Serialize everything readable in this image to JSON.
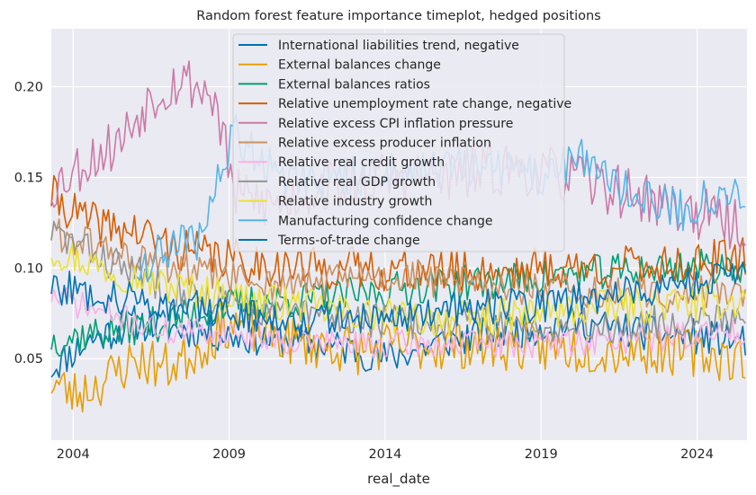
{
  "chart_data": {
    "type": "line",
    "title": "Random forest feature importance timeplot, hedged positions",
    "xlabel": "real_date",
    "ylabel": "",
    "xlim": [
      2003.3,
      2025.6
    ],
    "ylim": [
      0.005,
      0.232
    ],
    "x_ticks": [
      2004,
      2009,
      2014,
      2019,
      2024
    ],
    "x_tick_labels": [
      "2004",
      "2009",
      "2014",
      "2019",
      "2024"
    ],
    "y_ticks": [
      0.05,
      0.1,
      0.15,
      0.2
    ],
    "y_tick_labels": [
      "0.05",
      "0.10",
      "0.15",
      "0.20"
    ],
    "grid": true,
    "legend_position": "top-center",
    "x_start": 2003.3,
    "x_step": 0.08333,
    "points": 268,
    "series": [
      {
        "name": "International liabilities trend, negative",
        "color": "#0072b2",
        "start_x": 2003.3,
        "keyframes": [
          [
            2003.3,
            0.045
          ],
          [
            2004.5,
            0.06
          ],
          [
            2006.0,
            0.07
          ],
          [
            2008.0,
            0.065
          ],
          [
            2009.5,
            0.062
          ],
          [
            2011.0,
            0.06
          ],
          [
            2013.0,
            0.055
          ],
          [
            2014.0,
            0.05
          ],
          [
            2016.0,
            0.06
          ],
          [
            2018.0,
            0.065
          ],
          [
            2020.0,
            0.07
          ],
          [
            2022.0,
            0.065
          ],
          [
            2024.0,
            0.062
          ],
          [
            2025.6,
            0.06
          ]
        ],
        "noise": 0.01,
        "seed": 11
      },
      {
        "name": "External balances change",
        "color": "#e69f00",
        "start_x": 2003.3,
        "keyframes": [
          [
            2003.3,
            0.038
          ],
          [
            2004.0,
            0.03
          ],
          [
            2005.0,
            0.038
          ],
          [
            2006.0,
            0.05
          ],
          [
            2007.0,
            0.045
          ],
          [
            2008.0,
            0.055
          ],
          [
            2009.0,
            0.07
          ],
          [
            2011.0,
            0.06
          ],
          [
            2013.0,
            0.055
          ],
          [
            2015.0,
            0.057
          ],
          [
            2017.0,
            0.058
          ],
          [
            2019.0,
            0.056
          ],
          [
            2021.0,
            0.055
          ],
          [
            2023.0,
            0.055
          ],
          [
            2025.6,
            0.05
          ]
        ],
        "noise": 0.014,
        "seed": 23
      },
      {
        "name": "External balances ratios",
        "color": "#009e73",
        "start_x": 2003.3,
        "keyframes": [
          [
            2003.3,
            0.06
          ],
          [
            2005.0,
            0.065
          ],
          [
            2007.0,
            0.07
          ],
          [
            2009.0,
            0.08
          ],
          [
            2011.0,
            0.082
          ],
          [
            2013.0,
            0.085
          ],
          [
            2015.0,
            0.09
          ],
          [
            2017.0,
            0.092
          ],
          [
            2019.0,
            0.095
          ],
          [
            2021.0,
            0.098
          ],
          [
            2023.0,
            0.1
          ],
          [
            2025.6,
            0.102
          ]
        ],
        "noise": 0.01,
        "seed": 37
      },
      {
        "name": "Relative unemployment rate change, negative",
        "color": "#d55e00",
        "start_x": 2003.3,
        "keyframes": [
          [
            2003.3,
            0.14
          ],
          [
            2004.5,
            0.125
          ],
          [
            2006.0,
            0.12
          ],
          [
            2007.5,
            0.11
          ],
          [
            2009.0,
            0.105
          ],
          [
            2011.0,
            0.1
          ],
          [
            2013.0,
            0.1
          ],
          [
            2015.0,
            0.098
          ],
          [
            2017.0,
            0.098
          ],
          [
            2019.0,
            0.1
          ],
          [
            2021.0,
            0.1
          ],
          [
            2023.0,
            0.102
          ],
          [
            2025.6,
            0.105
          ]
        ],
        "noise": 0.012,
        "seed": 41
      },
      {
        "name": "Relative excess CPI inflation pressure",
        "color": "#cc79a7",
        "start_x": 2003.3,
        "keyframes": [
          [
            2003.3,
            0.145
          ],
          [
            2004.5,
            0.16
          ],
          [
            2005.5,
            0.17
          ],
          [
            2006.5,
            0.195
          ],
          [
            2007.5,
            0.205
          ],
          [
            2008.5,
            0.195
          ],
          [
            2009.2,
            0.14
          ],
          [
            2010.5,
            0.135
          ],
          [
            2012.0,
            0.145
          ],
          [
            2014.0,
            0.15
          ],
          [
            2016.0,
            0.15
          ],
          [
            2018.0,
            0.155
          ],
          [
            2020.0,
            0.15
          ],
          [
            2022.0,
            0.14
          ],
          [
            2024.0,
            0.13
          ],
          [
            2025.6,
            0.122
          ]
        ],
        "noise": 0.015,
        "seed": 53
      },
      {
        "name": "Relative excess producer inflation",
        "color": "#ca9161",
        "start_x": 2003.3,
        "keyframes": [
          [
            2003.3,
            0.12
          ],
          [
            2005.0,
            0.11
          ],
          [
            2007.0,
            0.1
          ],
          [
            2009.0,
            0.095
          ],
          [
            2011.0,
            0.09
          ],
          [
            2013.0,
            0.095
          ],
          [
            2015.0,
            0.095
          ],
          [
            2017.0,
            0.09
          ],
          [
            2019.0,
            0.088
          ],
          [
            2021.0,
            0.085
          ],
          [
            2023.0,
            0.085
          ],
          [
            2025.6,
            0.088
          ]
        ],
        "noise": 0.01,
        "seed": 61
      },
      {
        "name": "Relative real credit growth",
        "color": "#fbafe4",
        "start_x": 2003.3,
        "keyframes": [
          [
            2003.3,
            0.085
          ],
          [
            2005.0,
            0.075
          ],
          [
            2007.0,
            0.065
          ],
          [
            2009.0,
            0.065
          ],
          [
            2011.0,
            0.06
          ],
          [
            2013.0,
            0.058
          ],
          [
            2015.0,
            0.058
          ],
          [
            2017.0,
            0.058
          ],
          [
            2019.0,
            0.058
          ],
          [
            2021.0,
            0.06
          ],
          [
            2023.0,
            0.062
          ],
          [
            2025.6,
            0.065
          ]
        ],
        "noise": 0.008,
        "seed": 71
      },
      {
        "name": "Relative real GDP growth",
        "color": "#949494",
        "start_x": 2003.3,
        "keyframes": [
          [
            2003.3,
            0.12
          ],
          [
            2005.0,
            0.105
          ],
          [
            2007.0,
            0.09
          ],
          [
            2009.0,
            0.08
          ],
          [
            2011.0,
            0.075
          ],
          [
            2013.0,
            0.072
          ],
          [
            2015.0,
            0.07
          ],
          [
            2017.0,
            0.07
          ],
          [
            2019.0,
            0.068
          ],
          [
            2021.0,
            0.068
          ],
          [
            2023.0,
            0.07
          ],
          [
            2025.6,
            0.075
          ]
        ],
        "noise": 0.01,
        "seed": 83
      },
      {
        "name": "Relative industry growth",
        "color": "#ece133",
        "start_x": 2003.3,
        "keyframes": [
          [
            2003.3,
            0.11
          ],
          [
            2005.0,
            0.1
          ],
          [
            2007.0,
            0.09
          ],
          [
            2009.0,
            0.085
          ],
          [
            2011.0,
            0.08
          ],
          [
            2013.0,
            0.075
          ],
          [
            2015.0,
            0.072
          ],
          [
            2017.0,
            0.072
          ],
          [
            2019.0,
            0.075
          ],
          [
            2021.0,
            0.078
          ],
          [
            2023.0,
            0.08
          ],
          [
            2025.6,
            0.082
          ]
        ],
        "noise": 0.01,
        "seed": 97
      },
      {
        "name": "Manufacturing confidence change",
        "color": "#56b4e9",
        "start_x": 2006.0,
        "keyframes": [
          [
            2006.0,
            0.1
          ],
          [
            2007.0,
            0.11
          ],
          [
            2008.0,
            0.115
          ],
          [
            2009.2,
            0.175
          ],
          [
            2010.0,
            0.16
          ],
          [
            2011.0,
            0.15
          ],
          [
            2013.0,
            0.15
          ],
          [
            2015.0,
            0.155
          ],
          [
            2017.0,
            0.155
          ],
          [
            2019.0,
            0.152
          ],
          [
            2020.5,
            0.16
          ],
          [
            2022.0,
            0.14
          ],
          [
            2023.5,
            0.132
          ],
          [
            2024.5,
            0.138
          ],
          [
            2025.6,
            0.14
          ]
        ],
        "noise": 0.012,
        "seed": 109
      },
      {
        "name": "Terms-of-trade change",
        "color": "#0072b2",
        "start_x": 2003.3,
        "keyframes": [
          [
            2003.3,
            0.09
          ],
          [
            2005.0,
            0.085
          ],
          [
            2007.0,
            0.08
          ],
          [
            2009.0,
            0.075
          ],
          [
            2011.0,
            0.072
          ],
          [
            2013.0,
            0.072
          ],
          [
            2015.0,
            0.075
          ],
          [
            2017.0,
            0.078
          ],
          [
            2019.0,
            0.08
          ],
          [
            2021.0,
            0.085
          ],
          [
            2023.0,
            0.09
          ],
          [
            2025.6,
            0.095
          ]
        ],
        "noise": 0.01,
        "seed": 127
      }
    ]
  }
}
